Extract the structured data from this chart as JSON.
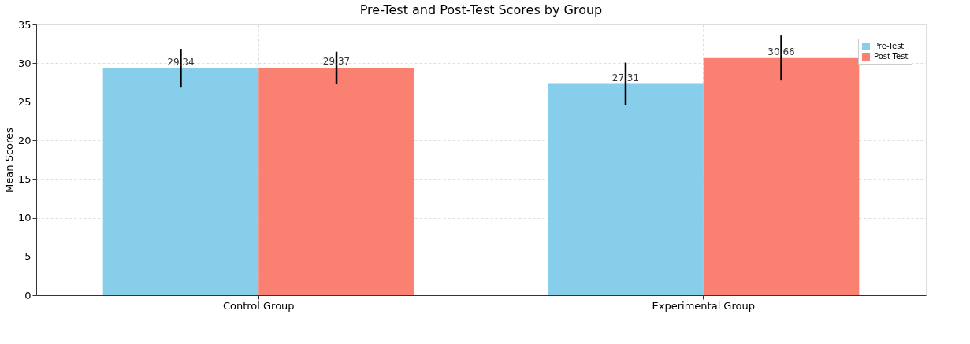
{
  "chart_data": {
    "type": "bar",
    "title": "Pre-Test and Post-Test Scores by Group",
    "ylabel": "Mean Scores",
    "categories": [
      "Control Group",
      "Experimental Group"
    ],
    "series": [
      {
        "name": "Pre-Test",
        "color": "#87ceeb",
        "values": [
          29.34,
          27.31
        ],
        "errors": [
          2.5,
          2.75
        ]
      },
      {
        "name": "Post-Test",
        "color": "#fa8072",
        "values": [
          29.37,
          30.66
        ],
        "errors": [
          2.1,
          2.9
        ]
      }
    ],
    "ylim": [
      0,
      35
    ],
    "yticks": [
      0,
      5,
      10,
      15,
      20,
      25,
      30,
      35
    ],
    "grid": true,
    "legend": "top right",
    "data_labels": true
  }
}
